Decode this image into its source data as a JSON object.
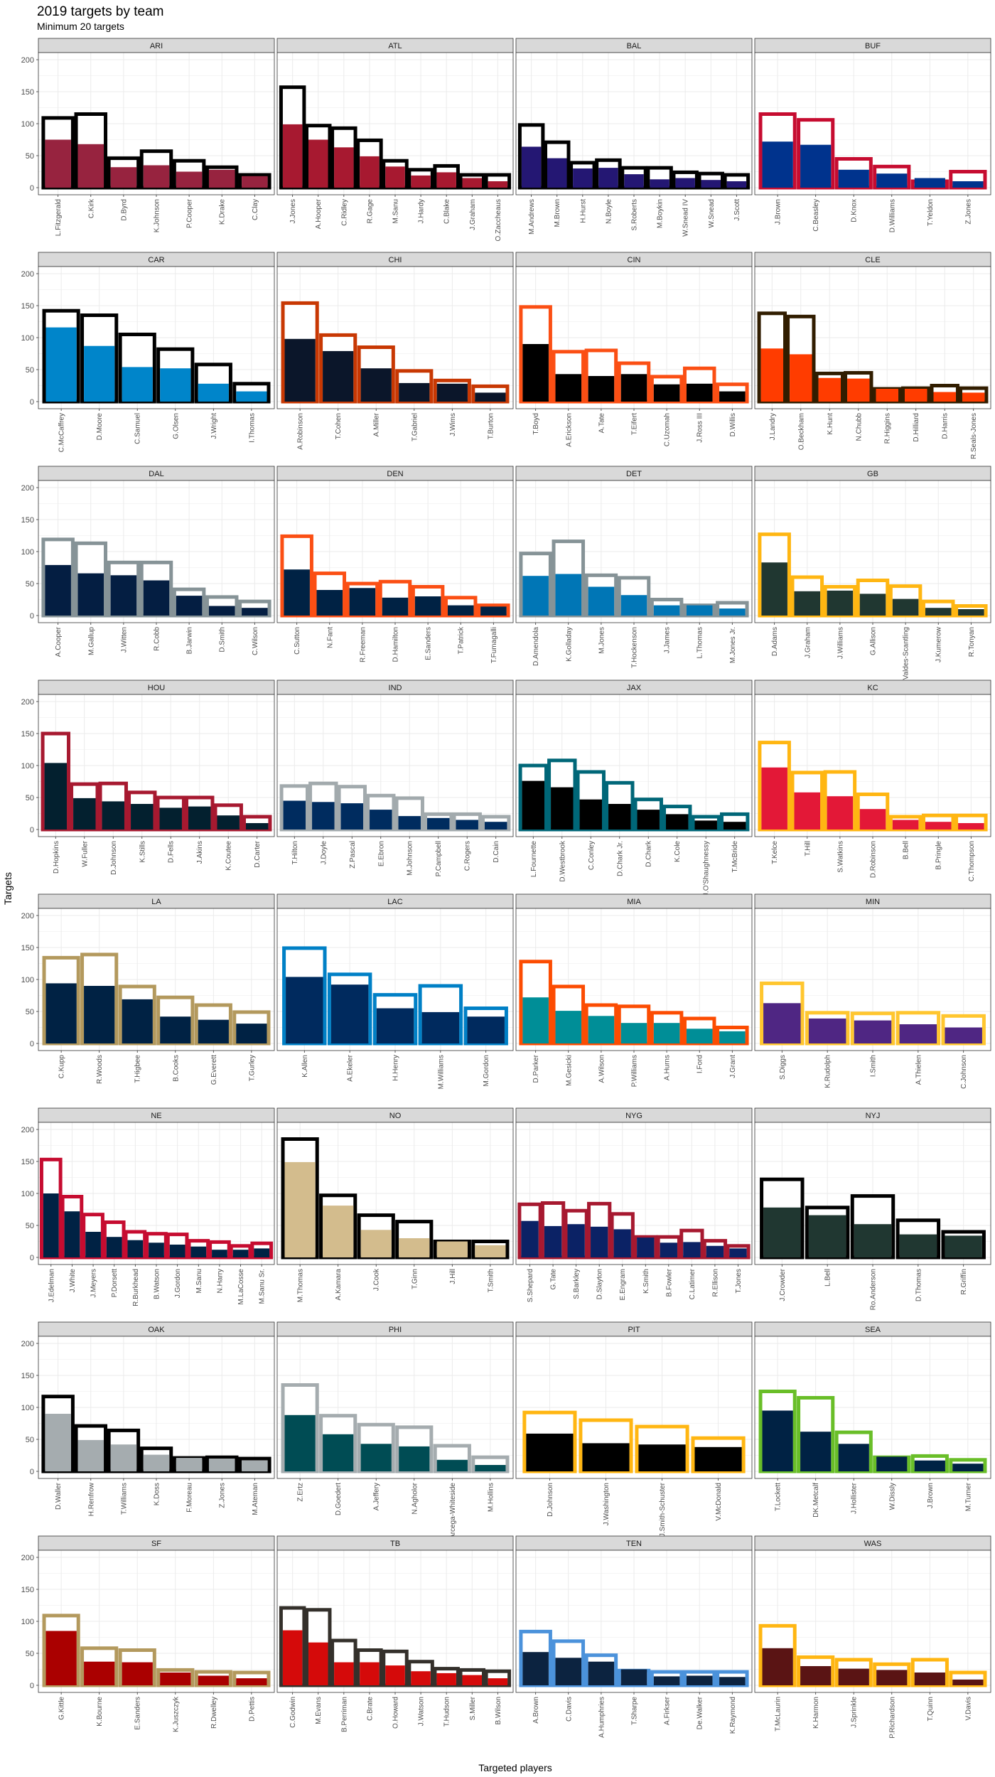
{
  "title": "2019 targets by team",
  "subtitle": "Minimum 20 targets",
  "xlabel": "Targeted players",
  "ylabel": "Targets",
  "chart_data": {
    "type": "bar",
    "ylim": [
      0,
      200
    ],
    "yticks": [
      0,
      50,
      100,
      150,
      200
    ],
    "grid": true,
    "legend": "none",
    "panels": [
      {
        "team": "ARI",
        "primary": "#97233F",
        "secondary": "#000000",
        "players": [
          "L.Fitzgerald",
          "C.Kirk",
          "D.Byrd",
          "K.Johnson",
          "P.Cooper",
          "K.Drake",
          "C.Clay"
        ],
        "targets": [
          109,
          115,
          46,
          57,
          42,
          32,
          20
        ],
        "receptions": [
          75,
          68,
          32,
          35,
          25,
          28,
          18
        ]
      },
      {
        "team": "ATL",
        "primary": "#A71930",
        "secondary": "#000000",
        "players": [
          "J.Jones",
          "A.Hooper",
          "C.Ridley",
          "R.Gage",
          "M.Sanu",
          "J.Hardy",
          "C.Blake",
          "J.Graham",
          "O.Zaccheaus"
        ],
        "targets": [
          157,
          97,
          93,
          74,
          42,
          28,
          34,
          20,
          20
        ],
        "receptions": [
          99,
          75,
          63,
          49,
          33,
          19,
          24,
          15,
          10
        ]
      },
      {
        "team": "BAL",
        "primary": "#241773",
        "secondary": "#000000",
        "players": [
          "M.Andrews",
          "M.Brown",
          "H.Hurst",
          "N.Boyle",
          "S.Roberts",
          "M.Boykin",
          "W.Snead IV",
          "W.Snead",
          "J.Scott"
        ],
        "targets": [
          98,
          71,
          39,
          43,
          31,
          31,
          24,
          22,
          20
        ],
        "receptions": [
          64,
          46,
          30,
          31,
          21,
          13,
          15,
          12,
          10
        ]
      },
      {
        "team": "BUF",
        "primary": "#00338D",
        "secondary": "#C60C30",
        "players": [
          "J.Brown",
          "C.Beasley",
          "D.Knox",
          "D.Williams",
          "T.Yeldon",
          "Z.Jones"
        ],
        "targets": [
          115,
          106,
          45,
          33,
          10,
          25
        ],
        "receptions": [
          72,
          67,
          28,
          22,
          15,
          10
        ]
      },
      {
        "team": "CAR",
        "primary": "#0085CA",
        "secondary": "#000000",
        "players": [
          "C.McCaffrey",
          "D.Moore",
          "C.Samuel",
          "G.Olsen",
          "J.Wright",
          "I.Thomas"
        ],
        "targets": [
          142,
          135,
          105,
          82,
          58,
          28
        ],
        "receptions": [
          116,
          87,
          54,
          52,
          28,
          16
        ]
      },
      {
        "team": "CHI",
        "primary": "#0B162A",
        "secondary": "#C83803",
        "players": [
          "A.Robinson",
          "T.Cohen",
          "A.Miller",
          "T.Gabriel",
          "J.Wims",
          "T.Burton"
        ],
        "targets": [
          154,
          104,
          85,
          48,
          33,
          24
        ],
        "receptions": [
          98,
          79,
          52,
          29,
          28,
          14
        ]
      },
      {
        "team": "CIN",
        "primary": "#000000",
        "secondary": "#FB4F14",
        "players": [
          "T.Boyd",
          "A.Erickson",
          "A.Tate",
          "T.Eifert",
          "C.Uzomah",
          "J.Ross III",
          "D.Willis"
        ],
        "targets": [
          148,
          78,
          80,
          60,
          39,
          52,
          27
        ],
        "receptions": [
          90,
          43,
          40,
          43,
          27,
          28,
          16
        ]
      },
      {
        "team": "CLE",
        "primary": "#FF3C00",
        "secondary": "#311D00",
        "players": [
          "J.Landry",
          "O.Beckham",
          "K.Hunt",
          "N.Chubb",
          "R.Higgins",
          "D.Hilliard",
          "D.Harris",
          "R.Seals-Jones"
        ],
        "targets": [
          138,
          133,
          44,
          45,
          20,
          21,
          25,
          21
        ],
        "receptions": [
          83,
          74,
          37,
          36,
          20,
          20,
          15,
          14
        ]
      },
      {
        "team": "DAL",
        "primary": "#041E42",
        "secondary": "#869397",
        "players": [
          "A.Cooper",
          "M.Gallup",
          "J.Witten",
          "R.Cobb",
          "B.Jarwin",
          "D.Smith",
          "C.Wilson"
        ],
        "targets": [
          119,
          113,
          83,
          83,
          41,
          29,
          22
        ],
        "receptions": [
          79,
          66,
          63,
          55,
          31,
          15,
          12
        ]
      },
      {
        "team": "DEN",
        "primary": "#002244",
        "secondary": "#FB4F14",
        "players": [
          "C.Sutton",
          "N.Fant",
          "R.Freeman",
          "D.Hamilton",
          "E.Sanders",
          "T.Patrick",
          "T.Fumagalli"
        ],
        "targets": [
          124,
          66,
          50,
          53,
          45,
          28,
          16
        ],
        "receptions": [
          72,
          40,
          43,
          28,
          30,
          16,
          14
        ]
      },
      {
        "team": "DET",
        "primary": "#0076B6",
        "secondary": "#869397",
        "players": [
          "D.Amendola",
          "K.Golladay",
          "M.Jones",
          "T.Hockenson",
          "J.James",
          "L.Thomas",
          "M.Jones Jr."
        ],
        "targets": [
          97,
          116,
          63,
          59,
          25,
          16,
          20
        ],
        "receptions": [
          62,
          65,
          45,
          32,
          16,
          16,
          11
        ]
      },
      {
        "team": "GB",
        "primary": "#203731",
        "secondary": "#FFB612",
        "players": [
          "D.Adams",
          "J.Graham",
          "J.Williams",
          "G.Allison",
          "M.Valdes-Scantling",
          "J.Kumerow",
          "R.Tonyan"
        ],
        "targets": [
          127,
          60,
          45,
          55,
          46,
          22,
          15
        ],
        "receptions": [
          83,
          38,
          39,
          34,
          26,
          12,
          10
        ]
      },
      {
        "team": "HOU",
        "primary": "#03202F",
        "secondary": "#A71930",
        "players": [
          "D.Hopkins",
          "W.Fuller",
          "D.Johnson",
          "K.Stills",
          "D.Fells",
          "J.Akins",
          "K.Coutee",
          "D.Carter"
        ],
        "targets": [
          150,
          71,
          72,
          58,
          50,
          50,
          38,
          20
        ],
        "receptions": [
          104,
          49,
          44,
          40,
          34,
          36,
          22,
          10
        ]
      },
      {
        "team": "IND",
        "primary": "#002C5F",
        "secondary": "#A2AAAD",
        "players": [
          "T.Hilton",
          "J.Doyle",
          "Z.Pascal",
          "E.Ebron",
          "M.Johnson",
          "P.Campbell",
          "C.Rogers",
          "D.Cain"
        ],
        "targets": [
          68,
          72,
          67,
          53,
          49,
          24,
          24,
          20
        ],
        "receptions": [
          45,
          43,
          41,
          31,
          21,
          18,
          15,
          12
        ]
      },
      {
        "team": "JAX",
        "primary": "#000000",
        "secondary": "#006778",
        "players": [
          "L.Fournette",
          "D.Westbrook",
          "C.Conley",
          "D.Chark Jr.",
          "D.Chark",
          "K.Cole",
          "J.O'Shaughnessy",
          "T.McBride"
        ],
        "targets": [
          100,
          108,
          90,
          73,
          47,
          36,
          20,
          24
        ],
        "receptions": [
          76,
          66,
          47,
          40,
          31,
          24,
          14,
          12
        ]
      },
      {
        "team": "KC",
        "primary": "#E31837",
        "secondary": "#FFB612",
        "players": [
          "T.Kelce",
          "T.Hill",
          "S.Watkins",
          "D.Robinson",
          "B.Bell",
          "B.Pringle",
          "C.Thompson"
        ],
        "targets": [
          136,
          89,
          90,
          55,
          20,
          22,
          22
        ],
        "receptions": [
          97,
          58,
          52,
          32,
          15,
          12,
          10
        ]
      },
      {
        "team": "LA",
        "primary": "#002244",
        "secondary": "#B3995D",
        "players": [
          "C.Kupp",
          "R.Woods",
          "T.Higbee",
          "B.Cooks",
          "G.Everett",
          "T.Gurley"
        ],
        "targets": [
          134,
          139,
          89,
          72,
          60,
          49
        ],
        "receptions": [
          94,
          90,
          69,
          42,
          37,
          31
        ]
      },
      {
        "team": "LAC",
        "primary": "#002A5E",
        "secondary": "#0080C6",
        "players": [
          "K.Allen",
          "A.Ekeler",
          "H.Henry",
          "M.Williams",
          "M.Gordon"
        ],
        "targets": [
          149,
          108,
          76,
          90,
          55
        ],
        "receptions": [
          104,
          92,
          55,
          49,
          42
        ]
      },
      {
        "team": "MIA",
        "primary": "#008E97",
        "secondary": "#FC4C02",
        "players": [
          "D.Parker",
          "M.Gesicki",
          "A.Wilson",
          "P.Williams",
          "A.Hurns",
          "I.Ford",
          "J.Grant"
        ],
        "targets": [
          128,
          89,
          60,
          58,
          48,
          39,
          25
        ],
        "receptions": [
          72,
          51,
          43,
          32,
          32,
          23,
          19
        ]
      },
      {
        "team": "MIN",
        "primary": "#4F2683",
        "secondary": "#FFC62F",
        "players": [
          "S.Diggs",
          "K.Rudolph",
          "I.Smith",
          "A.Thielen",
          "C.Johnson"
        ],
        "targets": [
          94,
          48,
          47,
          48,
          43
        ],
        "receptions": [
          63,
          39,
          36,
          30,
          25
        ]
      },
      {
        "team": "NE",
        "primary": "#002244",
        "secondary": "#C60C30",
        "players": [
          "J.Edelman",
          "J.White",
          "J.Meyers",
          "P.Dorsett",
          "R.Burkhead",
          "B.Watson",
          "J.Gordon",
          "M.Sanu",
          "N.Harry",
          "M.LaCosse",
          "M.Sanu Sr."
        ],
        "targets": [
          153,
          95,
          67,
          55,
          40,
          37,
          36,
          26,
          24,
          18,
          22
        ],
        "receptions": [
          100,
          72,
          40,
          32,
          27,
          23,
          20,
          17,
          12,
          12,
          14
        ]
      },
      {
        "team": "NO",
        "primary": "#D3BC8D",
        "secondary": "#000000",
        "players": [
          "M.Thomas",
          "A.Kamara",
          "J.Cook",
          "T.Ginn",
          "J.Hill",
          "T.Smith"
        ],
        "targets": [
          185,
          97,
          66,
          56,
          25,
          25
        ],
        "receptions": [
          149,
          81,
          43,
          30,
          25,
          19
        ]
      },
      {
        "team": "NYG",
        "primary": "#0B2265",
        "secondary": "#A71930",
        "players": [
          "S.Shepard",
          "G.Tate",
          "S.Barkley",
          "D.Slayton",
          "E.Engram",
          "K.Smith",
          "B.Fowler",
          "C.Latimer",
          "R.Ellison",
          "T.Jones"
        ],
        "targets": [
          83,
          85,
          73,
          84,
          68,
          32,
          32,
          42,
          26,
          18
        ],
        "receptions": [
          57,
          49,
          52,
          48,
          44,
          31,
          23,
          24,
          18,
          14
        ]
      },
      {
        "team": "NYJ",
        "primary": "#203731",
        "secondary": "#000000",
        "players": [
          "J.Crowder",
          "L.Bell",
          "Ro.Anderson",
          "D.Thomas",
          "R.Griffin"
        ],
        "targets": [
          122,
          78,
          96,
          58,
          40
        ],
        "receptions": [
          78,
          66,
          52,
          36,
          34
        ]
      },
      {
        "team": "OAK",
        "primary": "#A5ACAF",
        "secondary": "#000000",
        "players": [
          "D.Waller",
          "H.Renfrow",
          "T.Williams",
          "K.Doss",
          "F.Moreau",
          "Z.Jones",
          "M.Ateman"
        ],
        "targets": [
          117,
          71,
          64,
          36,
          21,
          22,
          20
        ],
        "receptions": [
          90,
          49,
          42,
          26,
          21,
          20,
          17
        ]
      },
      {
        "team": "PHI",
        "primary": "#004C54",
        "secondary": "#A5ACAF",
        "players": [
          "Z.Ertz",
          "D.Goedert",
          "A.Jeffery",
          "N.Agholor",
          "J.Arcega-Whiteside",
          "M.Hollins"
        ],
        "targets": [
          135,
          87,
          73,
          69,
          40,
          22
        ],
        "receptions": [
          88,
          58,
          43,
          39,
          18,
          10
        ]
      },
      {
        "team": "PIT",
        "primary": "#000000",
        "secondary": "#FFB612",
        "players": [
          "D.Johnson",
          "J.Washington",
          "J.Smith-Schuster",
          "V.McDonald"
        ],
        "targets": [
          92,
          80,
          70,
          52
        ],
        "receptions": [
          59,
          44,
          42,
          38
        ]
      },
      {
        "team": "SEA",
        "primary": "#002244",
        "secondary": "#69BE28",
        "players": [
          "T.Lockett",
          "DK.Metcalf",
          "J.Hollister",
          "W.Dissly",
          "J.Brown",
          "M.Turner"
        ],
        "targets": [
          125,
          115,
          61,
          22,
          24,
          18
        ],
        "receptions": [
          95,
          62,
          43,
          23,
          17,
          12
        ]
      },
      {
        "team": "SF",
        "primary": "#AA0000",
        "secondary": "#B3995D",
        "players": [
          "G.Kittle",
          "K.Bourne",
          "E.Sanders",
          "K.Juszczyk",
          "R.Dwelley",
          "D.Pettis"
        ],
        "targets": [
          109,
          58,
          55,
          24,
          21,
          20
        ],
        "receptions": [
          85,
          37,
          36,
          20,
          15,
          11
        ]
      },
      {
        "team": "TB",
        "primary": "#D50A0A",
        "secondary": "#34302B",
        "players": [
          "C.Godwin",
          "M.Evans",
          "B.Perriman",
          "C.Brate",
          "O.Howard",
          "J.Watson",
          "T.Hudson",
          "S.Miller",
          "B.Wilson"
        ],
        "targets": [
          121,
          118,
          70,
          55,
          53,
          37,
          26,
          24,
          22
        ],
        "receptions": [
          86,
          67,
          36,
          36,
          31,
          22,
          19,
          16,
          11
        ]
      },
      {
        "team": "TEN",
        "primary": "#0C2340",
        "secondary": "#4B92DB",
        "players": [
          "A.Brown",
          "C.Davis",
          "A.Humphries",
          "T.Sharpe",
          "A.Firkser",
          "De.Walker",
          "K.Raymond"
        ],
        "targets": [
          84,
          69,
          47,
          23,
          21,
          21,
          21
        ],
        "receptions": [
          52,
          43,
          37,
          25,
          14,
          15,
          13
        ]
      },
      {
        "team": "WAS",
        "primary": "#5A1414",
        "secondary": "#FFB612",
        "players": [
          "T.McLaurin",
          "K.Harmon",
          "J.Sprinkle",
          "P.Richardson",
          "T.Quinn",
          "V.Davis"
        ],
        "targets": [
          93,
          44,
          40,
          33,
          40,
          20
        ],
        "receptions": [
          58,
          30,
          26,
          24,
          20,
          9
        ]
      }
    ]
  }
}
